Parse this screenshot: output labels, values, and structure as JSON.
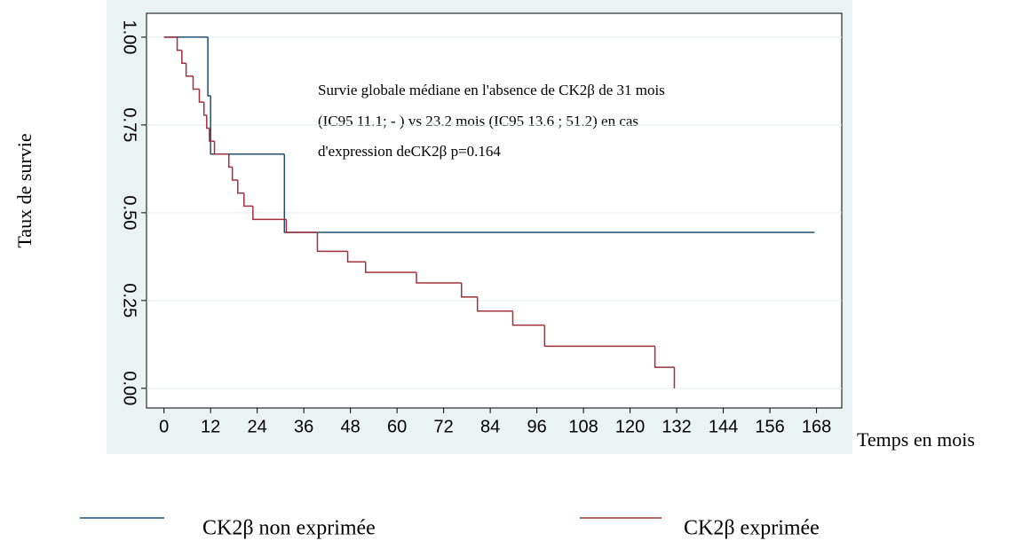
{
  "chart_data": {
    "type": "step",
    "annotation": [
      "Survie globale médiane en l'absence de CK2β de 31 mois",
      "(IC95 11.1; - ) vs 23.2 mois (IC95 13.6 ; 51.2) en cas",
      "d'expression deCK2β p=0.164"
    ],
    "x_label": "Temps en mois",
    "y_label": "Taux de survie",
    "xlim": [
      -4.5,
      174.5
    ],
    "ylim": [
      -0.056,
      1.068
    ],
    "xticks": [
      0,
      12,
      24,
      36,
      48,
      60,
      72,
      84,
      96,
      108,
      120,
      132,
      144,
      156,
      168
    ],
    "yticks": [
      {
        "value": 0,
        "label": "0.00"
      },
      {
        "value": 0.25,
        "label": "0.25"
      },
      {
        "value": 0.5,
        "label": "0.50"
      },
      {
        "value": 0.75,
        "label": "0.75"
      },
      {
        "value": 1,
        "label": "1.00"
      }
    ],
    "grid": true,
    "series": [
      {
        "name": "CK2β non exprimée",
        "color": "#1f4e79",
        "x": [
          0,
          11.3,
          12,
          31,
          167.5
        ],
        "values": [
          1,
          0.833,
          0.667,
          0.444,
          0.444
        ]
      },
      {
        "name": "CK2β exprimée",
        "color": "#a0303a",
        "x": [
          0,
          3.4,
          4.6,
          5.7,
          7.5,
          9.1,
          10.3,
          11,
          11.7,
          13,
          16.7,
          17.6,
          19,
          20.6,
          22.9,
          31.5,
          39.5,
          47.3,
          51.9,
          65,
          76.6,
          80.7,
          89.8,
          98,
          126.4,
          131.4
        ],
        "values": [
          1,
          0.963,
          0.926,
          0.889,
          0.852,
          0.815,
          0.778,
          0.741,
          0.704,
          0.667,
          0.63,
          0.593,
          0.556,
          0.519,
          0.481,
          0.444,
          0.39,
          0.36,
          0.33,
          0.3,
          0.26,
          0.22,
          0.18,
          0.12,
          0.06,
          0
        ]
      }
    ]
  }
}
